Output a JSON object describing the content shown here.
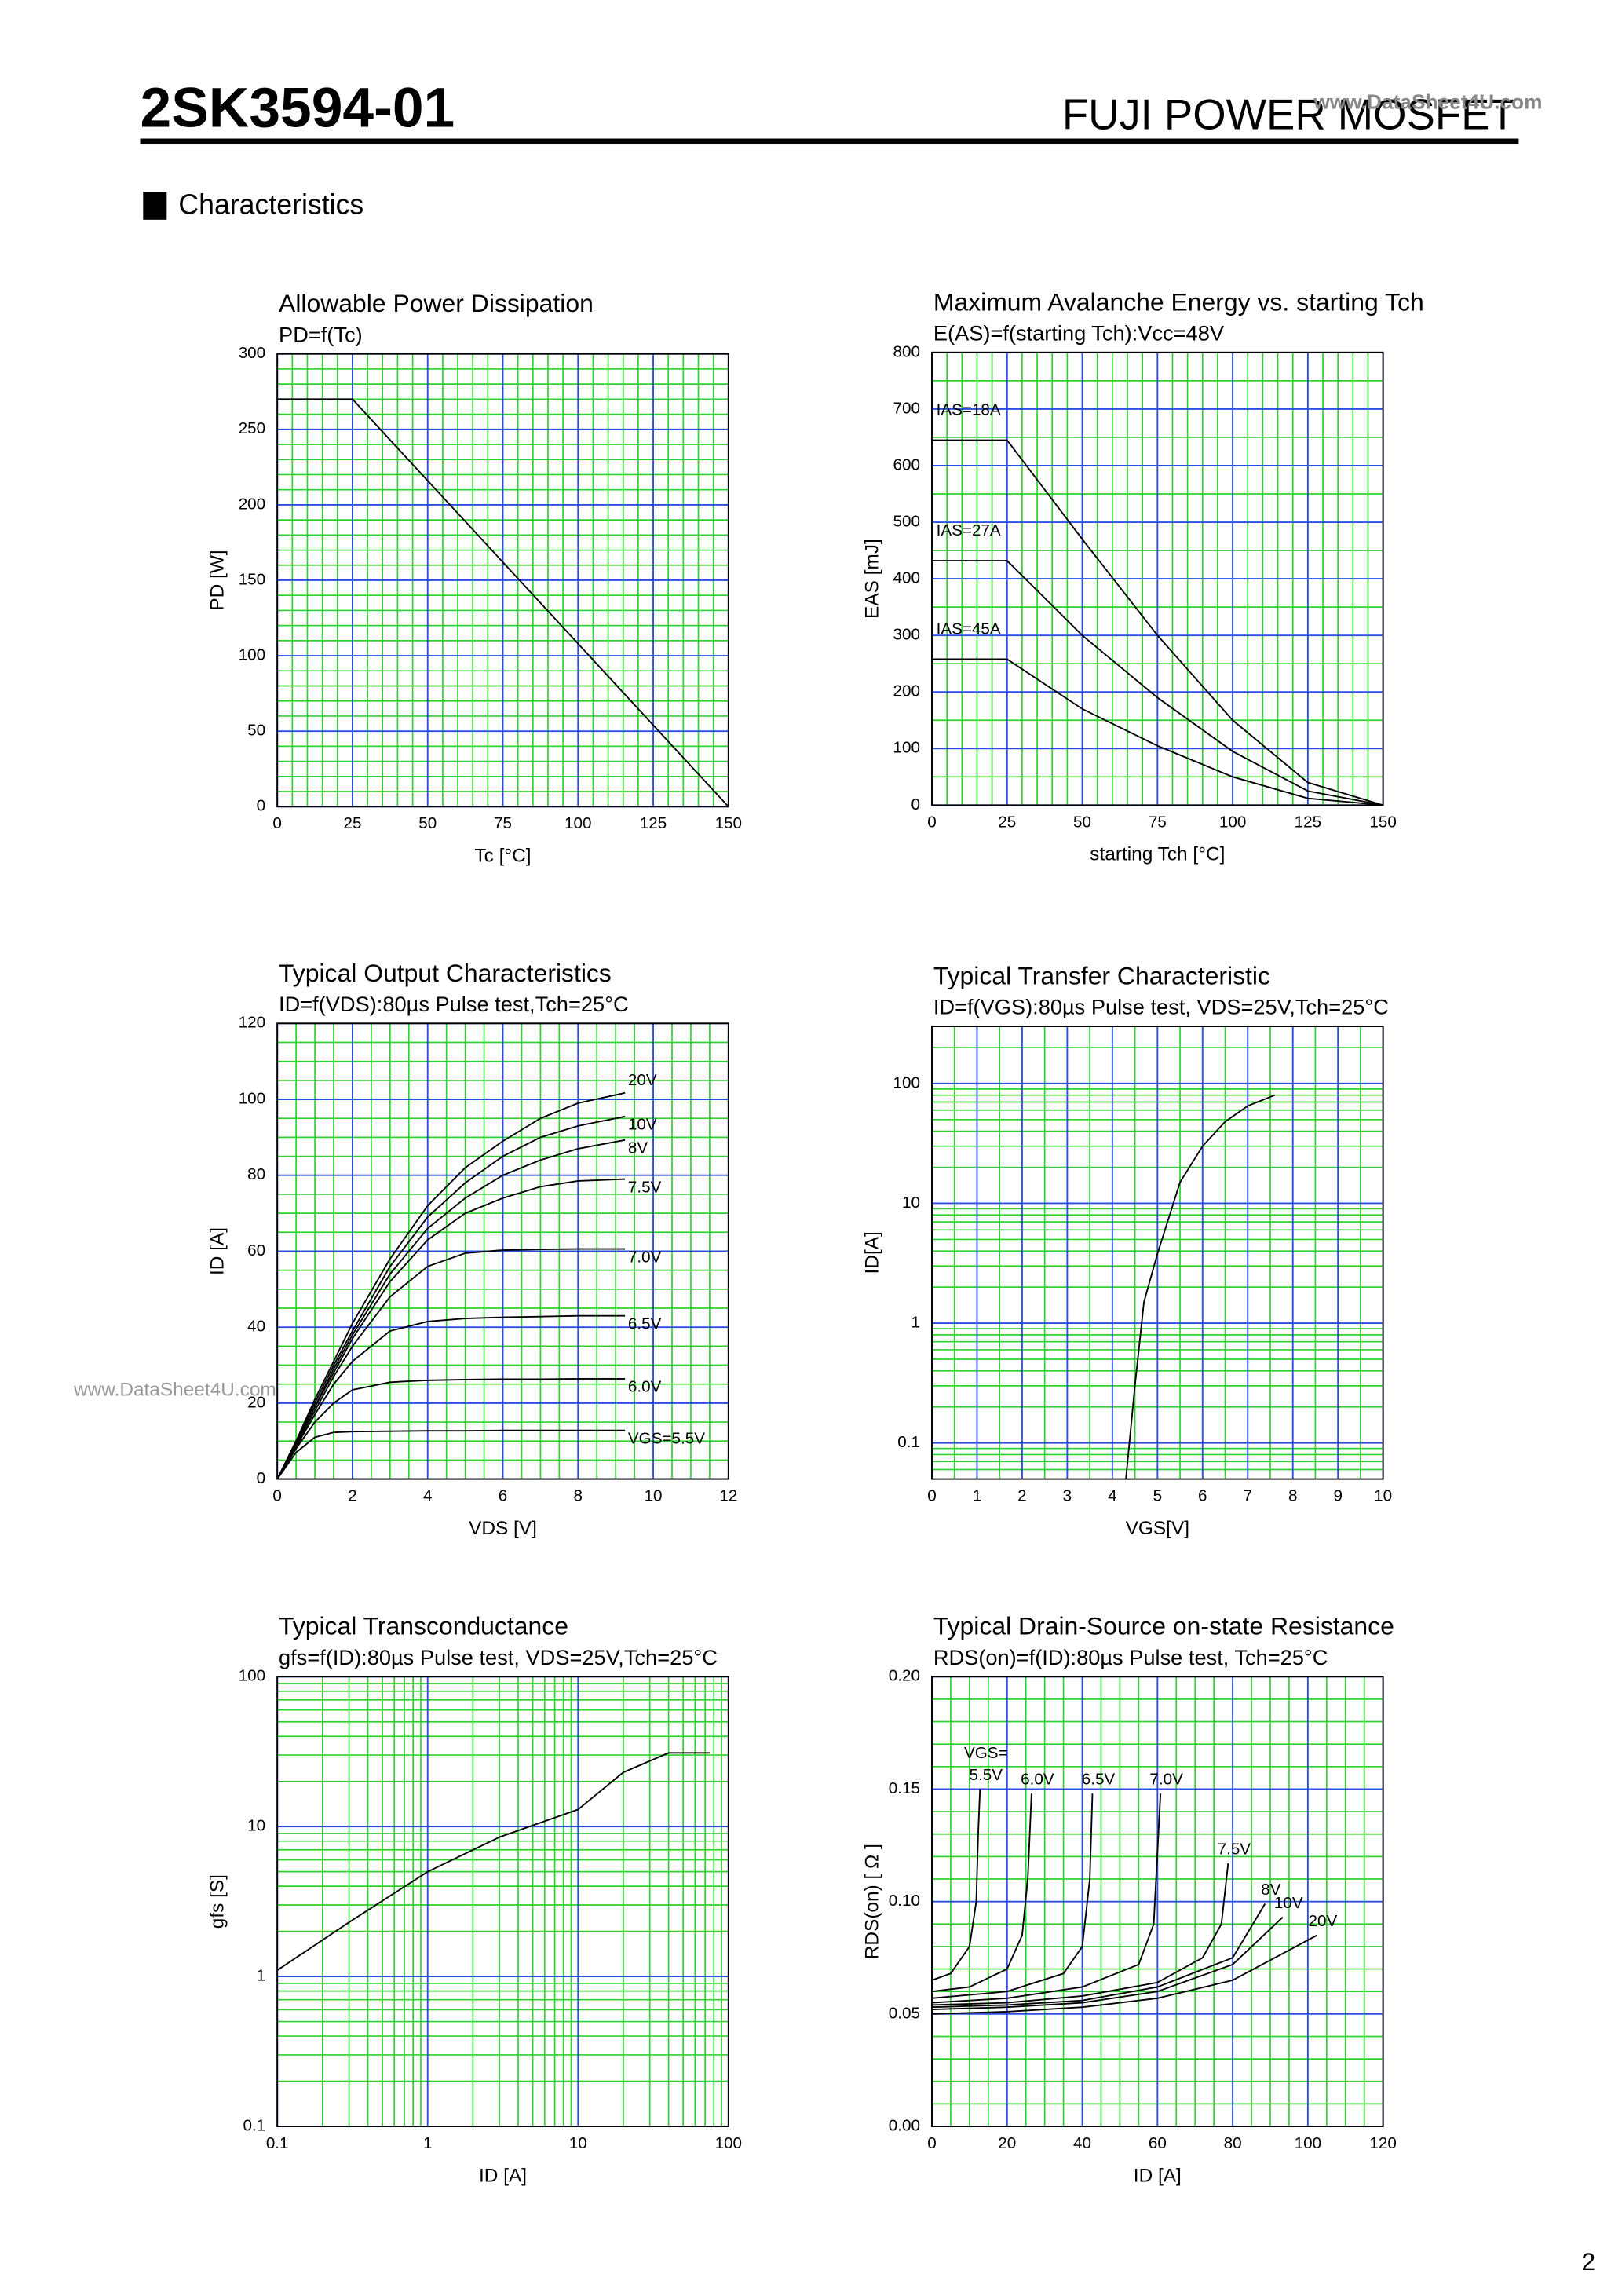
{
  "header": {
    "part": "2SK3594-01",
    "brand": "FUJI POWER MOSFET",
    "watermark": "www.DataSheet4U.com",
    "section": "Characteristics",
    "side_watermark": "www.DataSheet4U.com",
    "page": "2"
  },
  "chart_data": [
    {
      "type": "line",
      "title": "Allowable Power Dissipation",
      "subtitle": "PD=f(Tc)",
      "xlabel": "Tc [°C]",
      "ylabel": "PD [W]",
      "x": [
        0,
        25,
        150
      ],
      "values": [
        270,
        270,
        0
      ],
      "color": "#000000",
      "xlim": [
        0,
        150
      ],
      "xticks": [
        0,
        25,
        50,
        75,
        100,
        125,
        150
      ],
      "ylim": [
        0,
        300
      ],
      "yticks": [
        0,
        50,
        100,
        150,
        200,
        250,
        300
      ],
      "grid": true,
      "minor_grid": [
        5,
        5
      ]
    },
    {
      "type": "line",
      "title": "Maximum Avalanche Energy vs. starting Tch",
      "subtitle": "E(AS)=f(starting Tch):Vcc=48V",
      "xlabel": "starting Tch [°C]",
      "ylabel": "EAS [mJ]",
      "series": [
        {
          "name": "IAS=18A",
          "color": "#000000",
          "x": [
            0,
            25,
            50,
            75,
            100,
            125,
            150
          ],
          "values": [
            645,
            645,
            470,
            300,
            150,
            40,
            0
          ]
        },
        {
          "name": "IAS=27A",
          "color": "#000000",
          "x": [
            0,
            25,
            50,
            75,
            100,
            125,
            150
          ],
          "values": [
            432,
            432,
            300,
            190,
            95,
            25,
            0
          ]
        },
        {
          "name": "IAS=45A",
          "color": "#000000",
          "x": [
            0,
            25,
            50,
            75,
            100,
            125,
            150
          ],
          "values": [
            258,
            258,
            170,
            105,
            50,
            12,
            0
          ]
        }
      ],
      "xlim": [
        0,
        150
      ],
      "xticks": [
        0,
        25,
        50,
        75,
        100,
        125,
        150
      ],
      "ylim": [
        0,
        800
      ],
      "yticks": [
        0,
        100,
        200,
        300,
        400,
        500,
        600,
        700,
        800
      ],
      "grid": true,
      "minor_grid": [
        5,
        2
      ]
    },
    {
      "type": "line",
      "title": "Typical Output Characteristics",
      "subtitle": "ID=f(VDS):80µs Pulse test,Tch=25°C",
      "xlabel": "VDS [V]",
      "ylabel": "ID [A]",
      "series": [
        {
          "name": "20V",
          "color": "#000000",
          "x": [
            0,
            0.5,
            1,
            1.5,
            2,
            3,
            4,
            5,
            6,
            7,
            8,
            9.25
          ],
          "values": [
            0,
            10,
            21,
            31,
            41,
            58,
            72,
            82,
            89,
            95,
            99,
            101.7
          ]
        },
        {
          "name": "10V",
          "color": "#000000",
          "x": [
            0,
            0.5,
            1,
            1.5,
            2,
            3,
            4,
            5,
            6,
            7,
            8,
            9.25
          ],
          "values": [
            0,
            10,
            20,
            30,
            39,
            56,
            69,
            78,
            85,
            90,
            93,
            95.5
          ]
        },
        {
          "name": "8V",
          "color": "#000000",
          "x": [
            0,
            0.5,
            1,
            1.5,
            2,
            3,
            4,
            5,
            6,
            7,
            8,
            9.25
          ],
          "values": [
            0,
            9.5,
            19,
            29,
            38,
            54,
            66,
            74,
            80,
            84,
            87,
            89.3
          ]
        },
        {
          "name": "7.5V",
          "color": "#000000",
          "x": [
            0,
            0.5,
            1,
            1.5,
            2,
            3,
            4,
            5,
            6,
            7,
            8,
            9.25
          ],
          "values": [
            0,
            9.5,
            19,
            28,
            37,
            52,
            63,
            70,
            74,
            77,
            78.5,
            79
          ]
        },
        {
          "name": "7.0V",
          "color": "#000000",
          "x": [
            0,
            0.5,
            1,
            1.5,
            2,
            3,
            4,
            5,
            6,
            7,
            8,
            9.25
          ],
          "values": [
            0,
            9,
            18,
            27,
            35,
            48,
            56,
            59.5,
            60.3,
            60.5,
            60.6,
            60.6
          ]
        },
        {
          "name": "6.5V",
          "color": "#000000",
          "x": [
            0,
            0.5,
            1,
            1.5,
            2,
            3,
            4,
            5,
            6,
            7,
            8,
            9.25
          ],
          "values": [
            0,
            8.5,
            17,
            25,
            31,
            39,
            41.5,
            42.3,
            42.6,
            42.8,
            43,
            43
          ]
        },
        {
          "name": "6.0V",
          "color": "#000000",
          "x": [
            0,
            0.5,
            1,
            1.5,
            2,
            3,
            4,
            5,
            6,
            7,
            8,
            9.25
          ],
          "values": [
            0,
            8,
            15,
            20,
            23.5,
            25.5,
            26,
            26.2,
            26.3,
            26.3,
            26.4,
            26.4
          ]
        },
        {
          "name": "VGS=5.5V",
          "color": "#000000",
          "x": [
            0,
            0.5,
            1,
            1.5,
            2,
            3,
            4,
            5,
            6,
            7,
            8,
            9.25
          ],
          "values": [
            0,
            7,
            11,
            12.3,
            12.5,
            12.6,
            12.7,
            12.7,
            12.8,
            12.8,
            12.8,
            12.8
          ]
        }
      ],
      "xlim": [
        0,
        12
      ],
      "xticks": [
        0,
        2,
        4,
        6,
        8,
        10,
        12
      ],
      "ylim": [
        0,
        120
      ],
      "yticks": [
        0,
        20,
        40,
        60,
        80,
        100,
        120
      ],
      "grid": true,
      "minor_grid": [
        4,
        4
      ]
    },
    {
      "type": "line",
      "title": "Typical Transfer Characteristic",
      "subtitle": "ID=f(VGS):80µs Pulse test, VDS=25V,Tch=25°C",
      "xlabel": "VGS[V]",
      "ylabel": "ID[A]",
      "series": [
        {
          "name": null,
          "color": "#000000",
          "x": [
            4.3,
            4.5,
            4.7,
            5,
            5.5,
            6,
            6.5,
            7,
            7.6
          ],
          "values": [
            0.05,
            0.3,
            1.5,
            3.8,
            15,
            30,
            48,
            65,
            80
          ]
        }
      ],
      "xlim": [
        0,
        10
      ],
      "xticks": [
        0,
        1,
        2,
        3,
        4,
        5,
        6,
        7,
        8,
        9,
        10
      ],
      "ylim": [
        0.05,
        300
      ],
      "yticks": [
        0.1,
        1,
        10,
        100
      ],
      "ylog": true,
      "grid": true,
      "minor_grid": [
        2,
        1
      ]
    },
    {
      "type": "line",
      "title": "Typical Transconductance",
      "subtitle": "gfs=f(ID):80µs Pulse test, VDS=25V,Tch=25°C",
      "xlabel": "ID [A]",
      "ylabel": "gfs [S]",
      "series": [
        {
          "name": null,
          "color": "#000000",
          "x": [
            0.1,
            0.3,
            1,
            3,
            10,
            20,
            40,
            75
          ],
          "values": [
            1.1,
            2.3,
            5,
            8.5,
            13,
            23,
            31,
            31
          ]
        }
      ],
      "xlim": [
        0.1,
        100
      ],
      "xticks": [
        0.1,
        1,
        10,
        100
      ],
      "xlog": true,
      "ylim": [
        0.1,
        100
      ],
      "yticks": [
        0.1,
        1,
        10,
        100
      ],
      "ylog": true,
      "grid": true,
      "minor_grid": [
        1,
        1
      ]
    },
    {
      "type": "line",
      "title": "Typical Drain-Source on-state Resistance",
      "subtitle": "RDS(on)=f(ID):80µs Pulse test, Tch=25°C",
      "xlabel": "ID [A]",
      "ylabel": "RDS(on) [ Ω ]",
      "annotation": "VGS=",
      "series": [
        {
          "name": "5.5V",
          "color": "#000000",
          "x": [
            0,
            5,
            10,
            11.8,
            12.3,
            12.8
          ],
          "values": [
            0.065,
            0.068,
            0.08,
            0.1,
            0.13,
            0.15
          ]
        },
        {
          "name": "6.0V",
          "color": "#000000",
          "x": [
            0,
            10,
            20,
            24,
            25.5,
            26.5
          ],
          "values": [
            0.06,
            0.062,
            0.07,
            0.085,
            0.11,
            0.148
          ]
        },
        {
          "name": "6.5V",
          "color": "#000000",
          "x": [
            0,
            20,
            35,
            40,
            42,
            42.7
          ],
          "values": [
            0.057,
            0.06,
            0.068,
            0.08,
            0.11,
            0.148
          ]
        },
        {
          "name": "7.0V",
          "color": "#000000",
          "x": [
            0,
            20,
            40,
            55,
            59,
            60.8
          ],
          "values": [
            0.055,
            0.057,
            0.062,
            0.072,
            0.09,
            0.148
          ]
        },
        {
          "name": "7.5V",
          "color": "#000000",
          "x": [
            0,
            20,
            40,
            60,
            72,
            77,
            78.8
          ],
          "values": [
            0.054,
            0.055,
            0.058,
            0.064,
            0.075,
            0.09,
            0.117
          ]
        },
        {
          "name": "8V",
          "color": "#000000",
          "x": [
            0,
            20,
            40,
            60,
            80,
            88.6
          ],
          "values": [
            0.053,
            0.054,
            0.056,
            0.062,
            0.075,
            0.099
          ]
        },
        {
          "name": "10V",
          "color": "#000000",
          "x": [
            0,
            20,
            40,
            60,
            80,
            93.3
          ],
          "values": [
            0.052,
            0.053,
            0.055,
            0.06,
            0.072,
            0.093
          ]
        },
        {
          "name": "20V",
          "color": "#000000",
          "x": [
            0,
            20,
            40,
            60,
            80,
            102.4
          ],
          "values": [
            0.05,
            0.051,
            0.053,
            0.057,
            0.065,
            0.085
          ]
        }
      ],
      "xlim": [
        0,
        120
      ],
      "xticks": [
        0,
        20,
        40,
        60,
        80,
        100,
        120
      ],
      "ylim": [
        0,
        0.2
      ],
      "yticks": [
        {
          "value": 0,
          "label": "0.00"
        },
        0.05,
        {
          "value": 0.1,
          "label": "0.10"
        },
        0.15,
        {
          "value": 0.2,
          "label": "0.20"
        }
      ],
      "grid": true,
      "minor_grid": [
        4,
        5
      ]
    }
  ]
}
